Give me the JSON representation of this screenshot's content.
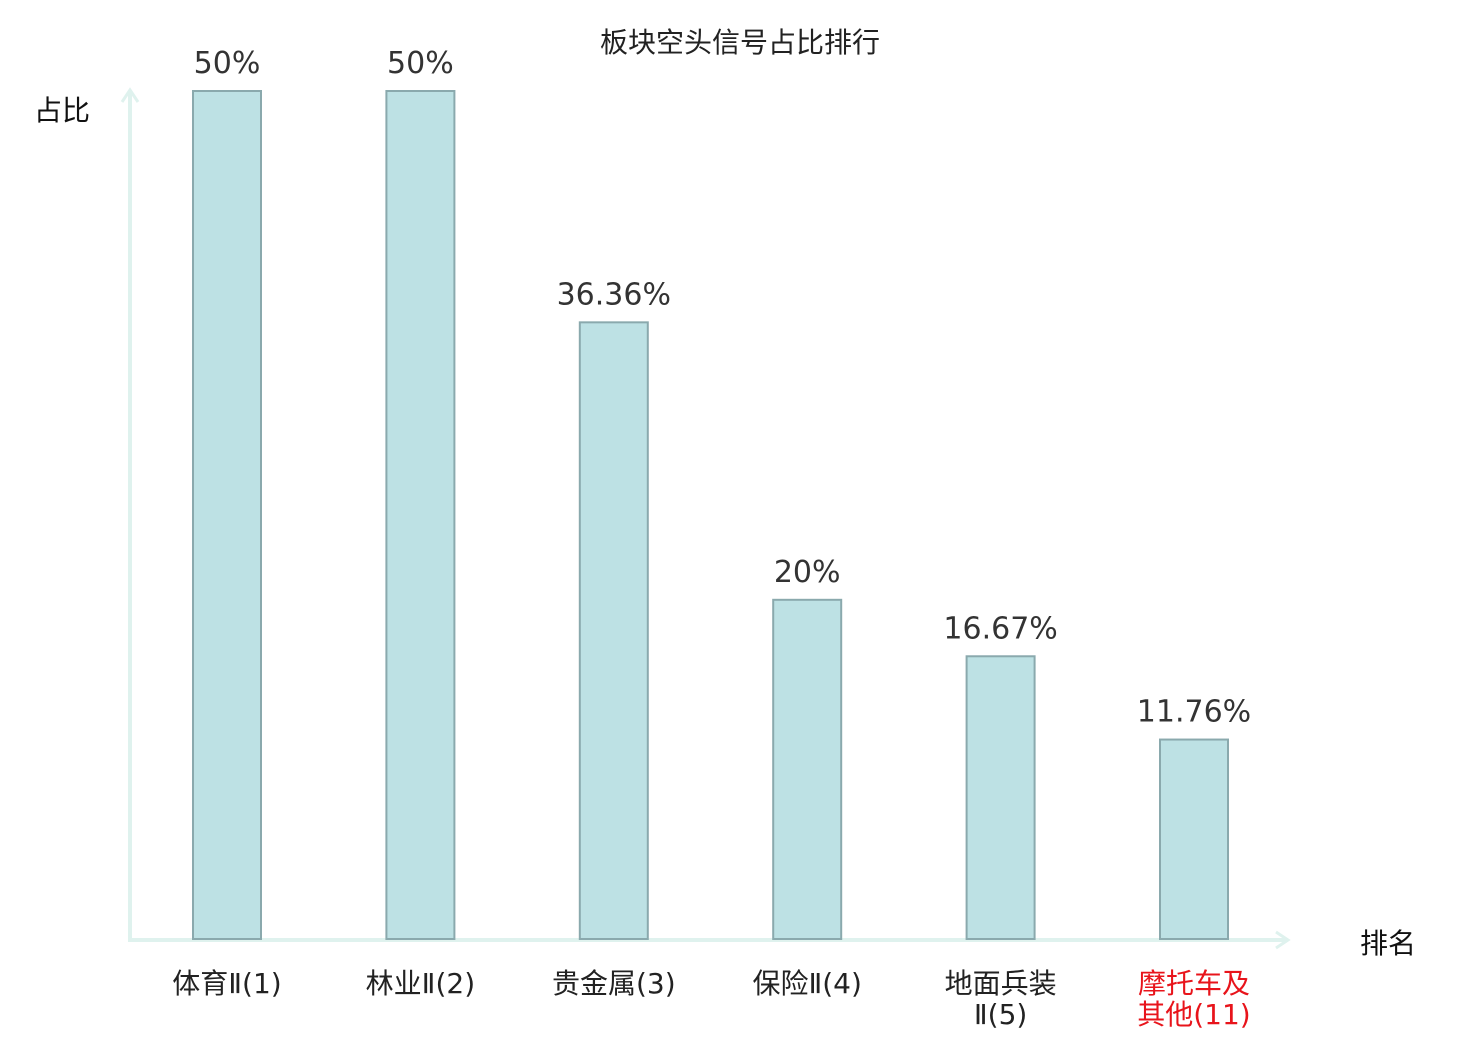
{
  "chart_data": {
    "type": "bar",
    "title": "板块空头信号占比排行",
    "ylabel": "占比",
    "xlabel": "排名",
    "ylim": [
      0,
      50
    ],
    "grid": false,
    "categories": [
      [
        "体育Ⅱ(1)"
      ],
      [
        "林业Ⅱ(2)"
      ],
      [
        "贵金属(3)"
      ],
      [
        "保险Ⅱ(4)"
      ],
      [
        "地面兵装",
        "Ⅱ(5)"
      ],
      [
        "摩托车及",
        "其他(11)"
      ]
    ],
    "values": [
      50,
      50,
      36.36,
      20,
      16.67,
      11.76
    ],
    "value_labels": [
      "50%",
      "50%",
      "36.36%",
      "20%",
      "16.67%",
      "11.76%"
    ],
    "highlight_index": 5,
    "colors": {
      "bar_fill": "#bde1e4",
      "bar_stroke": "#8aa9ad",
      "axis": "#dff2ee",
      "highlight_text": "#e8141b"
    }
  }
}
